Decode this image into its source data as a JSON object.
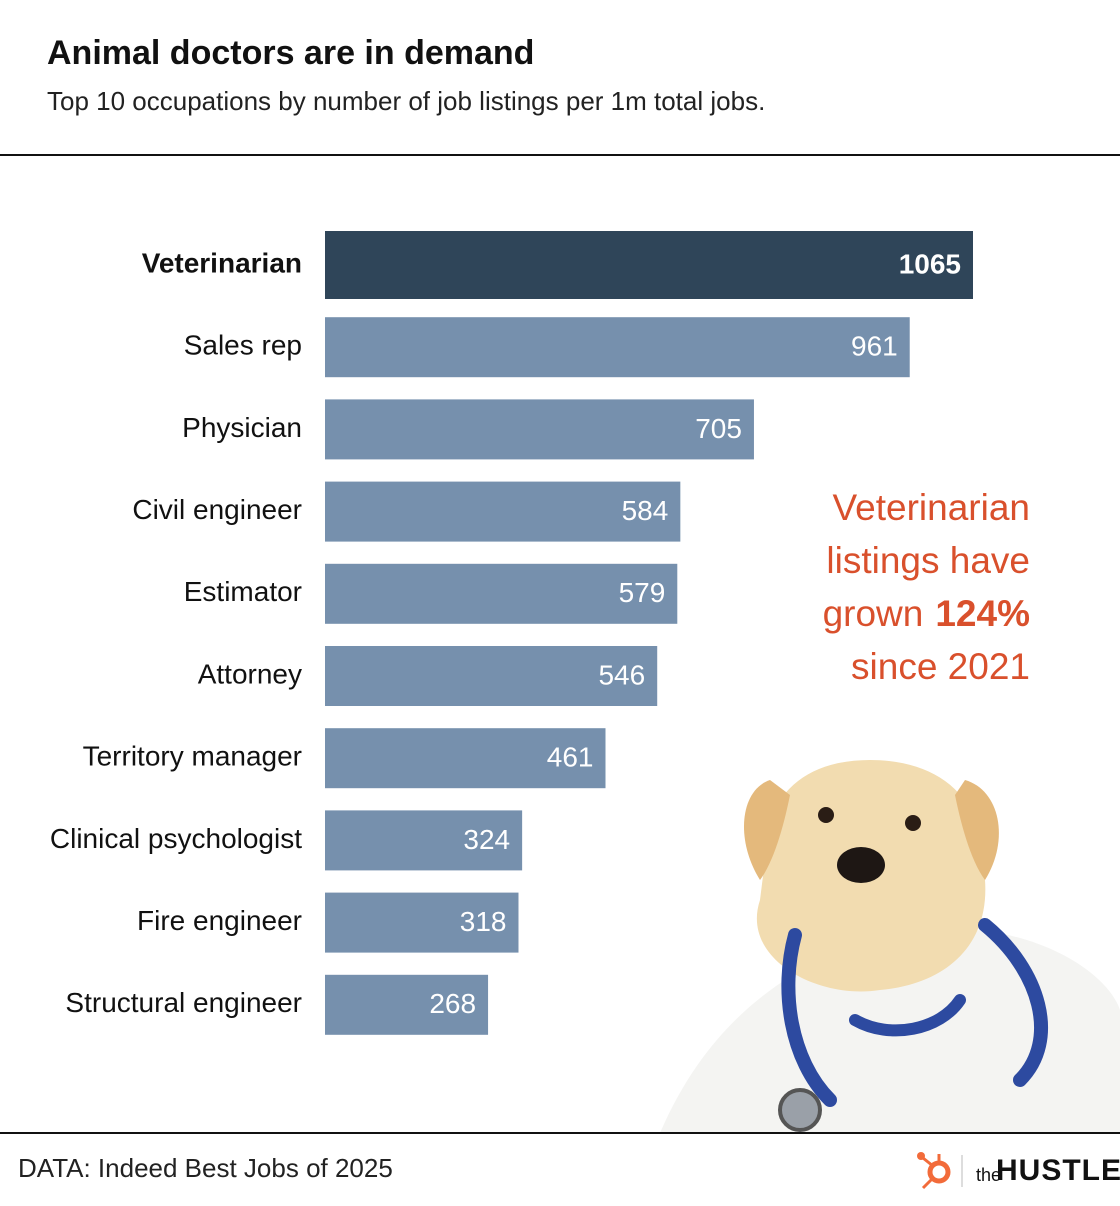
{
  "chart_data": {
    "type": "hbar",
    "title": "Animal doctors are in demand",
    "subtitle": "Top 10 occupations by number of job listings per 1m total jobs.",
    "categories": [
      "Veterinarian",
      "Sales rep",
      "Physician",
      "Civil engineer",
      "Estimator",
      "Attorney",
      "Territory manager",
      "Clinical psychologist",
      "Fire engineer",
      "Structural engineer"
    ],
    "values": [
      1065,
      961,
      705,
      584,
      579,
      546,
      461,
      324,
      318,
      268
    ],
    "colors": [
      "#2f4559",
      "#7690ad",
      "#7690ad",
      "#7690ad",
      "#7690ad",
      "#7690ad",
      "#7690ad",
      "#7690ad",
      "#7690ad",
      "#7690ad"
    ],
    "annotation_color": "#d9502c",
    "annotation": [
      [
        {
          "text": "Veterinarian",
          "bold": false
        }
      ],
      [
        {
          "text": "listings have",
          "bold": false
        }
      ],
      [
        {
          "text": "grown",
          "bold": false
        },
        {
          "text": "124%",
          "bold": true
        }
      ],
      [
        {
          "text": "since 2021",
          "bold": false
        }
      ]
    ],
    "source": "DATA: Indeed Best Jobs of 2025",
    "brand": {
      "prefix": "the",
      "name": "HUSTLE"
    }
  }
}
